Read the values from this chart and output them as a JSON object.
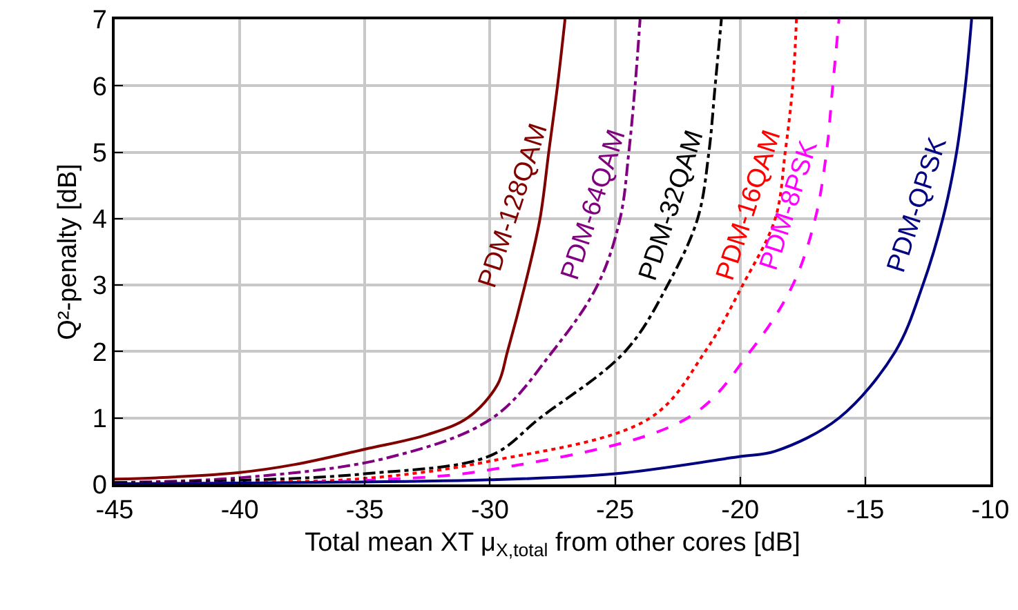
{
  "chart_data": {
    "type": "line",
    "xlabel": "Total mean XT μ$_{X,total}$ from other cores [dB]",
    "ylabel": "Q²-penalty [dB]",
    "xlim": [
      -45,
      -10
    ],
    "ylim": [
      0,
      7
    ],
    "xticks": [
      -45,
      -40,
      -35,
      -30,
      -25,
      -20,
      -15,
      -10
    ],
    "yticks": [
      0,
      1,
      2,
      3,
      4,
      5,
      6,
      7
    ],
    "grid": true,
    "legend": false,
    "marker": "none",
    "series": [
      {
        "name": "PDM-128QAM",
        "color": "#800000",
        "line_style": "solid",
        "x": [
          -45,
          -43.3,
          -40,
          -37.8,
          -35,
          -32.5,
          -30.9,
          -29.7,
          -29.3,
          -28.6,
          -28,
          -27.65,
          -27.3,
          -27
        ],
        "values": [
          0.08,
          0.1,
          0.18,
          0.3,
          0.53,
          0.75,
          1,
          1.5,
          2,
          3,
          4,
          5,
          6,
          7
        ]
      },
      {
        "name": "PDM-64QAM",
        "color": "#800080",
        "line_style": "dashdot",
        "x": [
          -45,
          -40,
          -34.1,
          -29.9,
          -27.5,
          -25.7,
          -24.8,
          -24.45,
          -24.2,
          -24
        ],
        "values": [
          0.03,
          0.1,
          0.4,
          1,
          2,
          3,
          4,
          5,
          6,
          7
        ]
      },
      {
        "name": "PDM-32QAM",
        "color": "#000000",
        "line_style": "dashdot",
        "x": [
          -45,
          -40,
          -35,
          -30,
          -28,
          -24.6,
          -22.9,
          -21.7,
          -21.25,
          -21,
          -20.75
        ],
        "values": [
          0.02,
          0.06,
          0.16,
          0.43,
          1,
          2,
          3,
          4,
          5,
          6,
          7
        ]
      },
      {
        "name": "PDM-16QAM",
        "color": "#ff0000",
        "line_style": "dotted",
        "x": [
          -45,
          -40,
          -35,
          -30,
          -23.6,
          -21.4,
          -19.9,
          -18.6,
          -18.2,
          -17.9,
          -17.75
        ],
        "values": [
          0.01,
          0.03,
          0.09,
          0.35,
          1,
          2,
          3,
          4,
          5,
          6,
          7
        ]
      },
      {
        "name": "PDM-8PSK",
        "color": "#ff00ff",
        "line_style": "dashed",
        "x": [
          -45,
          -40,
          -35,
          -30,
          -22.1,
          -19.6,
          -17.9,
          -17,
          -16.55,
          -16.3,
          -16.05
        ],
        "values": [
          0.01,
          0.02,
          0.06,
          0.22,
          1,
          2,
          3,
          4,
          5,
          6,
          7
        ]
      },
      {
        "name": "PDM-QPSK",
        "color": "#000080",
        "line_style": "solid",
        "x": [
          -45,
          -40,
          -30,
          -25,
          -20,
          -18.6,
          -16.05,
          -13.8,
          -12.7,
          -11.9,
          -11.35,
          -11,
          -10.75
        ],
        "values": [
          0.01,
          0.02,
          0.07,
          0.16,
          0.42,
          0.5,
          1,
          2,
          3,
          4,
          5,
          6,
          7
        ]
      }
    ]
  }
}
